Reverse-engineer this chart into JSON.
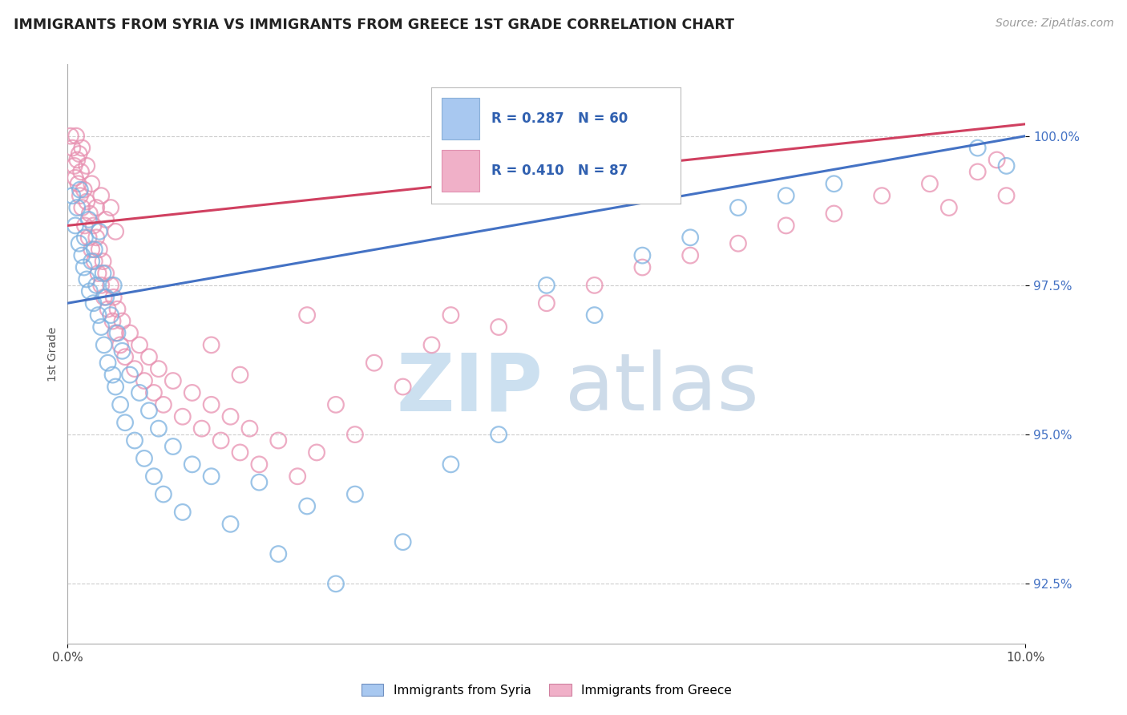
{
  "title": "IMMIGRANTS FROM SYRIA VS IMMIGRANTS FROM GREECE 1ST GRADE CORRELATION CHART",
  "source": "Source: ZipAtlas.com",
  "ylabel": "1st Grade",
  "yticks": [
    92.5,
    95.0,
    97.5,
    100.0
  ],
  "xlim": [
    0.0,
    10.0
  ],
  "ylim": [
    91.5,
    101.2
  ],
  "legend_syria": {
    "R": 0.287,
    "N": 60,
    "color": "#a8c8f0"
  },
  "legend_greece": {
    "R": 0.41,
    "N": 87,
    "color": "#f0b0c8"
  },
  "syria_color": "#7ab0e0",
  "greece_color": "#e890b0",
  "syria_line_color": "#4472c4",
  "greece_line_color": "#d04060",
  "watermark_zip_color": "#cce0f0",
  "watermark_atlas_color": "#b8cce0",
  "syria_points": [
    [
      0.05,
      99.0
    ],
    [
      0.08,
      98.5
    ],
    [
      0.1,
      98.8
    ],
    [
      0.12,
      98.2
    ],
    [
      0.13,
      99.1
    ],
    [
      0.15,
      98.0
    ],
    [
      0.17,
      97.8
    ],
    [
      0.18,
      98.3
    ],
    [
      0.2,
      97.6
    ],
    [
      0.22,
      98.6
    ],
    [
      0.23,
      97.4
    ],
    [
      0.25,
      97.9
    ],
    [
      0.27,
      97.2
    ],
    [
      0.28,
      98.1
    ],
    [
      0.3,
      97.5
    ],
    [
      0.32,
      97.0
    ],
    [
      0.33,
      98.4
    ],
    [
      0.35,
      96.8
    ],
    [
      0.37,
      97.7
    ],
    [
      0.38,
      96.5
    ],
    [
      0.4,
      97.3
    ],
    [
      0.42,
      96.2
    ],
    [
      0.45,
      97.0
    ],
    [
      0.47,
      96.0
    ],
    [
      0.48,
      97.5
    ],
    [
      0.5,
      95.8
    ],
    [
      0.52,
      96.7
    ],
    [
      0.55,
      95.5
    ],
    [
      0.57,
      96.4
    ],
    [
      0.6,
      95.2
    ],
    [
      0.65,
      96.0
    ],
    [
      0.7,
      94.9
    ],
    [
      0.75,
      95.7
    ],
    [
      0.8,
      94.6
    ],
    [
      0.85,
      95.4
    ],
    [
      0.9,
      94.3
    ],
    [
      0.95,
      95.1
    ],
    [
      1.0,
      94.0
    ],
    [
      1.1,
      94.8
    ],
    [
      1.2,
      93.7
    ],
    [
      1.3,
      94.5
    ],
    [
      1.5,
      94.3
    ],
    [
      1.7,
      93.5
    ],
    [
      2.0,
      94.2
    ],
    [
      2.2,
      93.0
    ],
    [
      2.5,
      93.8
    ],
    [
      2.8,
      92.5
    ],
    [
      3.0,
      94.0
    ],
    [
      3.5,
      93.2
    ],
    [
      4.0,
      94.5
    ],
    [
      4.5,
      95.0
    ],
    [
      5.0,
      97.5
    ],
    [
      5.5,
      97.0
    ],
    [
      6.0,
      98.0
    ],
    [
      6.5,
      98.3
    ],
    [
      7.0,
      98.8
    ],
    [
      7.5,
      99.0
    ],
    [
      8.0,
      99.2
    ],
    [
      9.5,
      99.8
    ],
    [
      9.8,
      99.5
    ]
  ],
  "greece_points": [
    [
      0.03,
      100.0
    ],
    [
      0.05,
      99.8
    ],
    [
      0.07,
      99.5
    ],
    [
      0.08,
      99.3
    ],
    [
      0.09,
      100.0
    ],
    [
      0.1,
      99.6
    ],
    [
      0.11,
      99.2
    ],
    [
      0.12,
      99.7
    ],
    [
      0.13,
      99.0
    ],
    [
      0.14,
      99.4
    ],
    [
      0.15,
      98.8
    ],
    [
      0.17,
      99.1
    ],
    [
      0.18,
      98.5
    ],
    [
      0.2,
      98.9
    ],
    [
      0.22,
      98.3
    ],
    [
      0.23,
      98.7
    ],
    [
      0.25,
      98.1
    ],
    [
      0.27,
      98.5
    ],
    [
      0.28,
      97.9
    ],
    [
      0.3,
      98.3
    ],
    [
      0.32,
      97.7
    ],
    [
      0.33,
      98.1
    ],
    [
      0.35,
      97.5
    ],
    [
      0.37,
      97.9
    ],
    [
      0.38,
      97.3
    ],
    [
      0.4,
      97.7
    ],
    [
      0.42,
      97.1
    ],
    [
      0.45,
      97.5
    ],
    [
      0.47,
      96.9
    ],
    [
      0.48,
      97.3
    ],
    [
      0.5,
      96.7
    ],
    [
      0.52,
      97.1
    ],
    [
      0.55,
      96.5
    ],
    [
      0.57,
      96.9
    ],
    [
      0.6,
      96.3
    ],
    [
      0.65,
      96.7
    ],
    [
      0.7,
      96.1
    ],
    [
      0.75,
      96.5
    ],
    [
      0.8,
      95.9
    ],
    [
      0.85,
      96.3
    ],
    [
      0.9,
      95.7
    ],
    [
      0.95,
      96.1
    ],
    [
      1.0,
      95.5
    ],
    [
      1.1,
      95.9
    ],
    [
      1.2,
      95.3
    ],
    [
      1.3,
      95.7
    ],
    [
      1.4,
      95.1
    ],
    [
      1.5,
      95.5
    ],
    [
      1.6,
      94.9
    ],
    [
      1.7,
      95.3
    ],
    [
      1.8,
      94.7
    ],
    [
      1.9,
      95.1
    ],
    [
      2.0,
      94.5
    ],
    [
      2.2,
      94.9
    ],
    [
      2.4,
      94.3
    ],
    [
      2.5,
      97.0
    ],
    [
      2.6,
      94.7
    ],
    [
      2.8,
      95.5
    ],
    [
      3.0,
      95.0
    ],
    [
      3.2,
      96.2
    ],
    [
      3.5,
      95.8
    ],
    [
      3.8,
      96.5
    ],
    [
      4.0,
      97.0
    ],
    [
      4.5,
      96.8
    ],
    [
      5.0,
      97.2
    ],
    [
      5.5,
      97.5
    ],
    [
      6.0,
      97.8
    ],
    [
      6.5,
      98.0
    ],
    [
      7.0,
      98.2
    ],
    [
      7.5,
      98.5
    ],
    [
      8.0,
      98.7
    ],
    [
      8.5,
      99.0
    ],
    [
      9.0,
      99.2
    ],
    [
      9.2,
      98.8
    ],
    [
      9.5,
      99.4
    ],
    [
      9.7,
      99.6
    ],
    [
      9.8,
      99.0
    ],
    [
      0.15,
      99.8
    ],
    [
      0.2,
      99.5
    ],
    [
      0.25,
      99.2
    ],
    [
      0.3,
      98.8
    ],
    [
      0.35,
      99.0
    ],
    [
      0.4,
      98.6
    ],
    [
      0.45,
      98.8
    ],
    [
      0.5,
      98.4
    ],
    [
      1.5,
      96.5
    ],
    [
      1.8,
      96.0
    ]
  ],
  "syria_line": {
    "x0": 0.0,
    "y0": 97.2,
    "x1": 10.0,
    "y1": 100.0
  },
  "greece_line": {
    "x0": 0.0,
    "y0": 98.5,
    "x1": 10.0,
    "y1": 100.2
  }
}
